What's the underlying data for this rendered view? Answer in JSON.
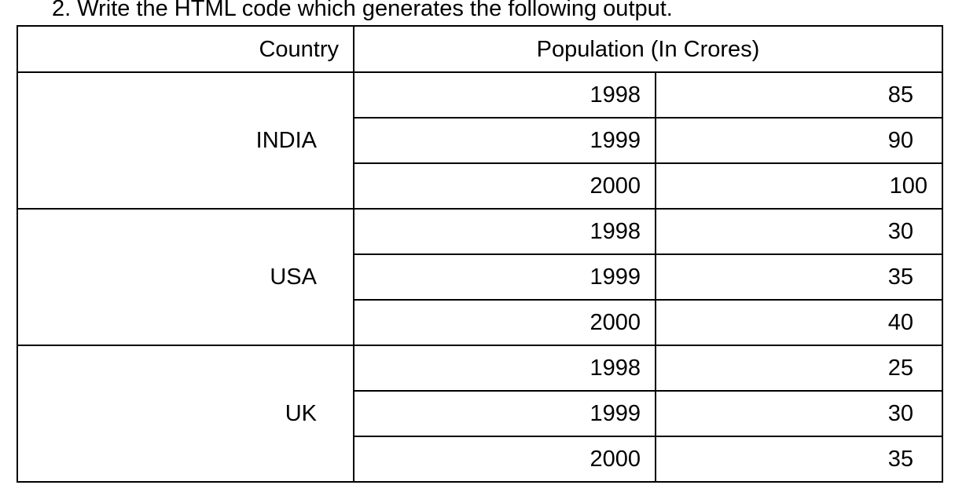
{
  "question": "2. Write the HTML code which generates the following output.",
  "table": {
    "headers": {
      "country": "Country",
      "population": "Population (In Crores)"
    },
    "groups": [
      {
        "country": "INDIA",
        "rows": [
          {
            "year": "1998",
            "population": "85"
          },
          {
            "year": "1999",
            "population": "90"
          },
          {
            "year": "2000",
            "population": "100"
          }
        ]
      },
      {
        "country": "USA",
        "rows": [
          {
            "year": "1998",
            "population": "30"
          },
          {
            "year": "1999",
            "population": "35"
          },
          {
            "year": "2000",
            "population": "40"
          }
        ]
      },
      {
        "country": "UK",
        "rows": [
          {
            "year": "1998",
            "population": "25"
          },
          {
            "year": "1999",
            "population": "30"
          },
          {
            "year": "2000",
            "population": "35"
          }
        ]
      }
    ]
  }
}
